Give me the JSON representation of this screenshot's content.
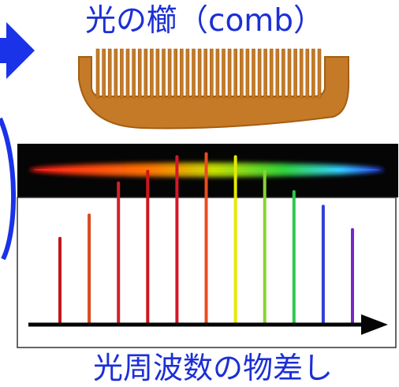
{
  "title": "光の櫛（comb）",
  "caption": "光周波数の物差し",
  "colors": {
    "text": "#1b2fd6",
    "arrow": "#1a32e8",
    "comb_fill": "#c47a27",
    "comb_stroke": "#a45e10",
    "spectrum_bg": "#050505",
    "axis": "#050505"
  },
  "spectrum_stops": [
    {
      "offset": 0.0,
      "color": "#ff1a1a"
    },
    {
      "offset": 0.35,
      "color": "#ff7a00"
    },
    {
      "offset": 0.52,
      "color": "#c7df00"
    },
    {
      "offset": 0.72,
      "color": "#2fd43a"
    },
    {
      "offset": 0.88,
      "color": "#33ccff"
    },
    {
      "offset": 1.0,
      "color": "#2b45ff"
    }
  ],
  "chart_data": {
    "type": "bar",
    "title": "",
    "xlabel": "光周波数の物差し",
    "ylabel": "",
    "grid": false,
    "values": [
      0.29,
      0.37,
      0.48,
      0.52,
      0.57,
      0.58,
      0.57,
      0.52,
      0.45,
      0.4,
      0.32
    ],
    "colors": [
      "#c0171b",
      "#d94a1e",
      "#d32126",
      "#d1151b",
      "#d5172a",
      "#e84d1f",
      "#e6ea00",
      "#8bd331",
      "#2ccb4a",
      "#2f3fd4",
      "#7a25c9"
    ],
    "ylim": [
      0,
      0.65
    ]
  }
}
